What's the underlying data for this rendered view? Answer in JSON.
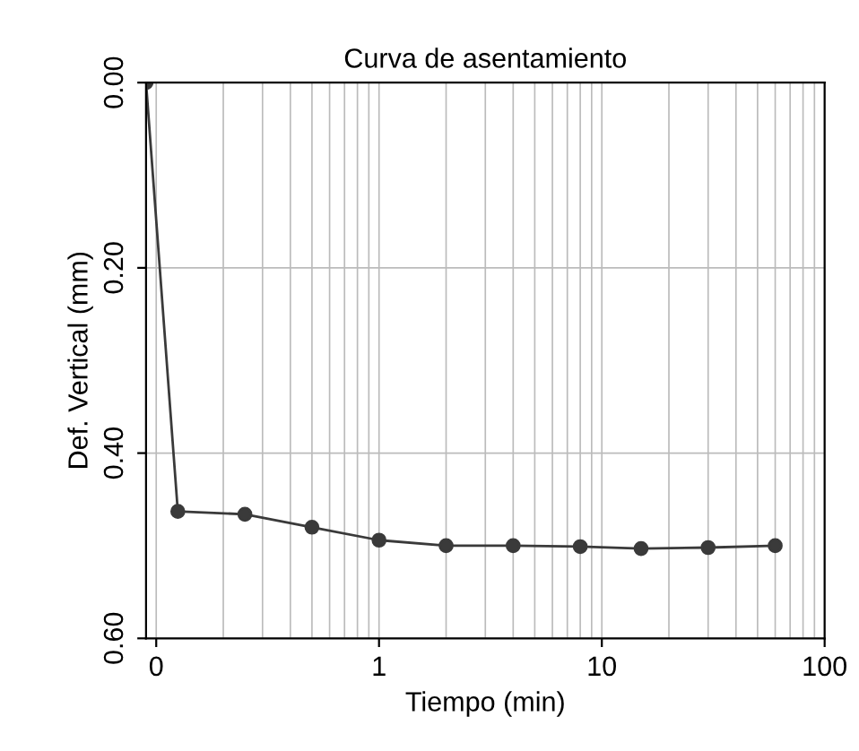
{
  "chart_data": {
    "type": "line",
    "title": "Curva de asentamiento",
    "xlabel": "Tiempo (min)",
    "ylabel": "Def. Vertical (mm)",
    "x": [
      0.09,
      0.125,
      0.25,
      0.5,
      1,
      2,
      4,
      8,
      15,
      30,
      60
    ],
    "series": [
      {
        "color": "#3a3a3a",
        "values": [
          0.0,
          0.463,
          0.466,
          0.48,
          0.494,
          0.5,
          0.5,
          0.501,
          0.503,
          0.502,
          0.5
        ]
      }
    ],
    "log": "x",
    "xlim": [
      0.09,
      100
    ],
    "xticks": [
      {
        "value": 0.1,
        "label": "0"
      },
      1,
      10,
      100
    ],
    "ylim": [
      0.6,
      0.0
    ],
    "yticks": [
      {
        "value": 0.0,
        "label": "0.00"
      },
      {
        "value": 0.2,
        "label": "0.20"
      },
      {
        "value": 0.4,
        "label": "0.40"
      },
      {
        "value": 0.6,
        "label": "0.60"
      }
    ],
    "grid": true,
    "marker": "circle",
    "line_style": "solid"
  }
}
